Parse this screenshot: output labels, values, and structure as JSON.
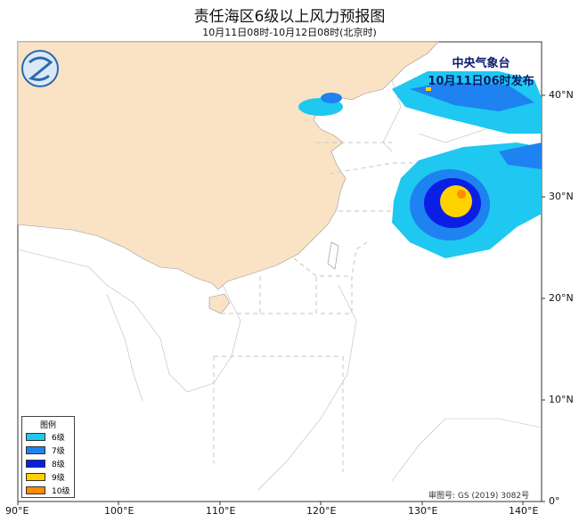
{
  "title": "责任海区6级以上风力预报图",
  "subtitle": "10月11日08时-10月12日08时(北京时)",
  "issuer": {
    "line1": "中央气象台",
    "line2": "10月11日06时发布"
  },
  "approval": "审图号: GS (2019) 3082号",
  "legend": {
    "title": "图例",
    "items": [
      {
        "label": "6级",
        "color": "#1ec8f0"
      },
      {
        "label": "7级",
        "color": "#1e82f0"
      },
      {
        "label": "8级",
        "color": "#0a1ee6"
      },
      {
        "label": "9级",
        "color": "#ffd200"
      },
      {
        "label": "10级",
        "color": "#ff8c00"
      }
    ]
  },
  "x_ticks": [
    "90°E",
    "100°E",
    "110°E",
    "120°E",
    "130°E",
    "140°E"
  ],
  "y_ticks": [
    "0°",
    "10°N",
    "20°N",
    "30°N",
    "40°N"
  ],
  "colors": {
    "land": "#f9e3c4",
    "sea": "#ffffff",
    "sea_area_lines": "#c8c8c8"
  },
  "logo": "CMA"
}
